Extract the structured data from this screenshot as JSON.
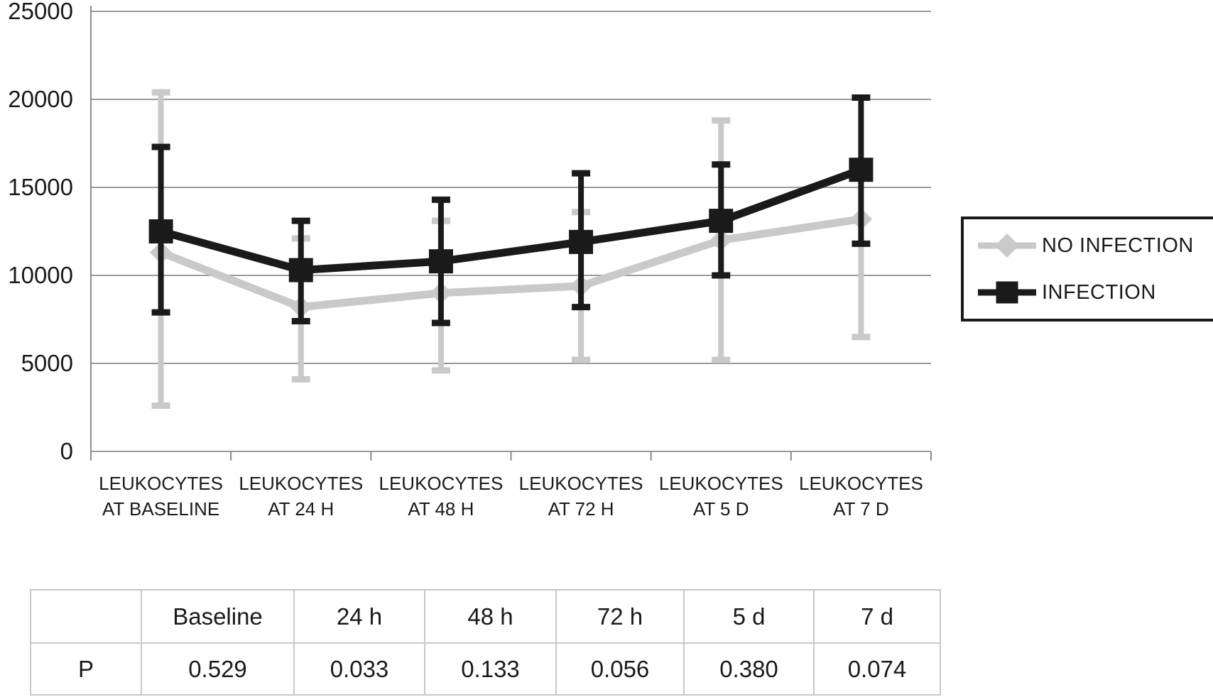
{
  "chart_data": {
    "type": "line",
    "title": "",
    "xlabel": "",
    "ylabel": "",
    "ylim": [
      0,
      25000
    ],
    "y_ticks": [
      0,
      5000,
      10000,
      15000,
      20000,
      25000
    ],
    "grid": true,
    "legend_position": "right",
    "categories": [
      [
        "LEUKOCYTES",
        "AT BASELINE"
      ],
      [
        "LEUKOCYTES",
        "AT 24 H"
      ],
      [
        "LEUKOCYTES",
        "AT 48 H"
      ],
      [
        "LEUKOCYTES",
        "AT 72 H"
      ],
      [
        "LEUKOCYTES",
        "AT 5 D"
      ],
      [
        "LEUKOCYTES",
        "AT 7 D"
      ]
    ],
    "series": [
      {
        "name": "NO INFECTION",
        "marker": "diamond",
        "color": "#c9c9c9",
        "values": [
          11300,
          8200,
          9000,
          9400,
          12000,
          13200
        ],
        "err_low": [
          2600,
          4100,
          4600,
          5200,
          5200,
          6500
        ],
        "err_high": [
          20400,
          12100,
          13100,
          13600,
          18800,
          null
        ]
      },
      {
        "name": "INFECTION",
        "marker": "square",
        "color": "#1a1a1a",
        "values": [
          12500,
          10300,
          10800,
          11900,
          13100,
          16000
        ],
        "err_low": [
          7900,
          7400,
          7300,
          8200,
          10000,
          11800
        ],
        "err_high": [
          17300,
          13100,
          14300,
          15800,
          16300,
          20100
        ]
      }
    ]
  },
  "legend": {
    "items": [
      {
        "label": "NO INFECTION",
        "color": "#c9c9c9",
        "marker": "diamond"
      },
      {
        "label": "INFECTION",
        "color": "#1a1a1a",
        "marker": "square"
      }
    ]
  },
  "table": {
    "header": [
      "",
      "Baseline",
      "24 h",
      "48 h",
      "72 h",
      "5 d",
      "7 d"
    ],
    "rows": [
      [
        "P",
        "0.529",
        "0.033",
        "0.133",
        "0.056",
        "0.380",
        "0.074"
      ]
    ]
  },
  "colors": {
    "grid": "#9a9a9a",
    "axis": "#8c8c8c",
    "text": "#1a1a1a"
  }
}
